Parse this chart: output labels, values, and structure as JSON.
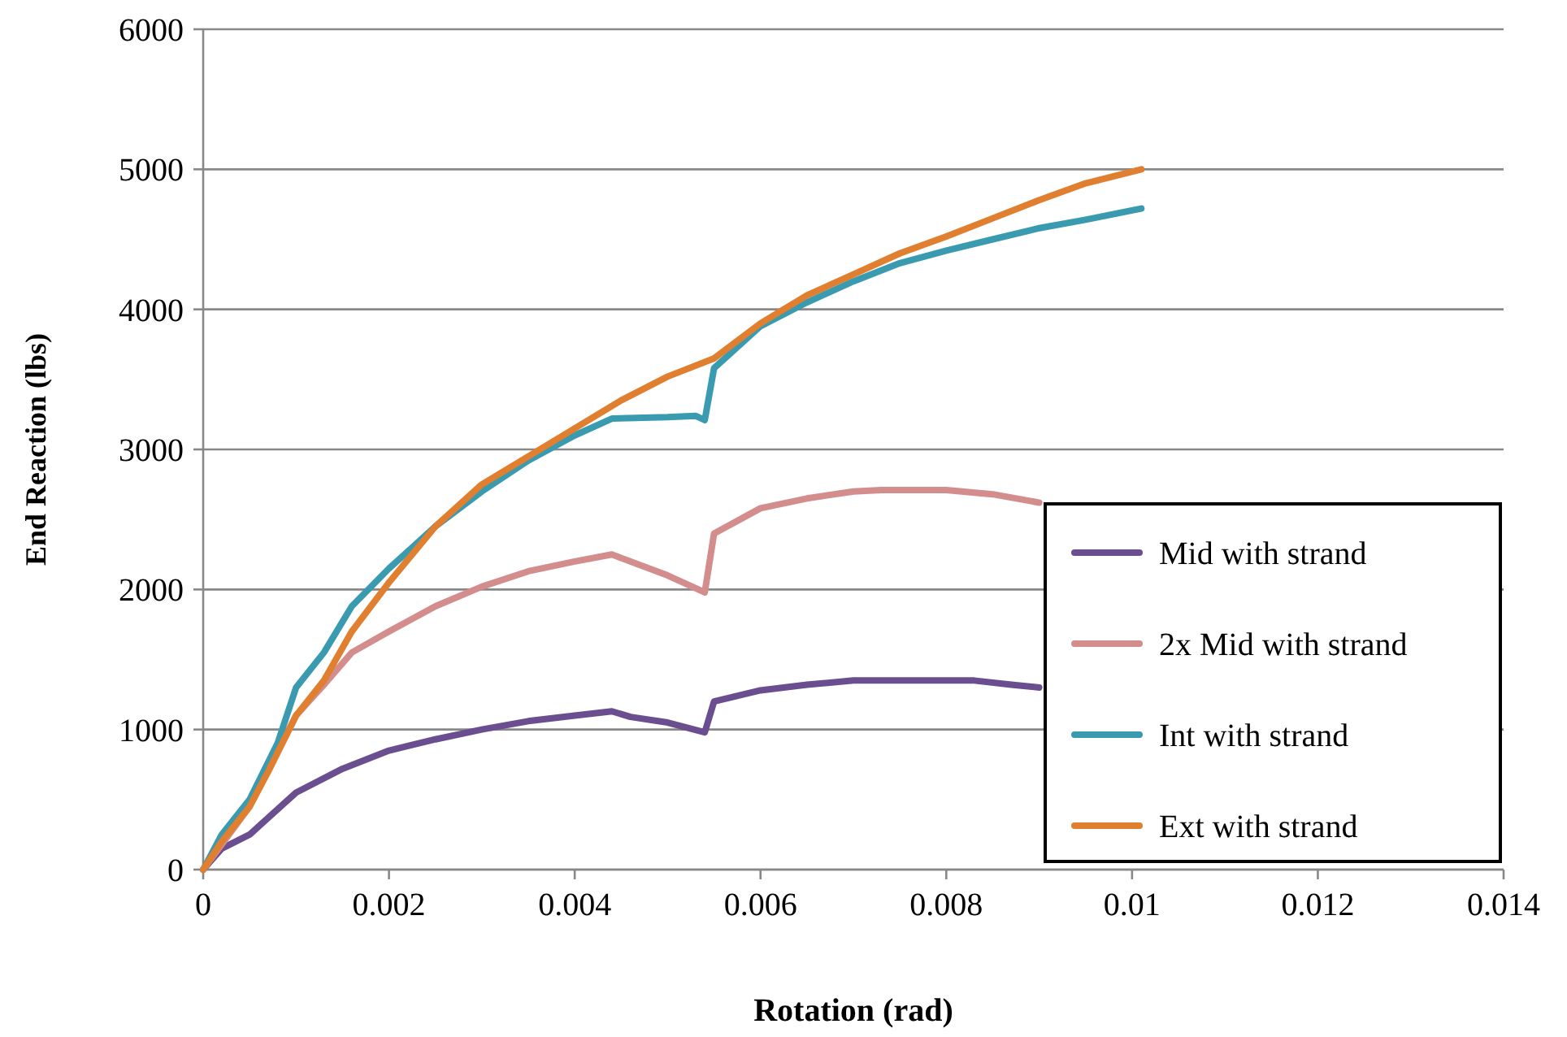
{
  "chart_data": {
    "type": "line",
    "xlabel": "Rotation (rad)",
    "ylabel": "End Reaction (lbs)",
    "xlim": [
      0,
      0.014
    ],
    "xticks": [
      0,
      0.002,
      0.004,
      0.006,
      0.008,
      0.01,
      0.012,
      0.014
    ],
    "ylim": [
      0,
      6000
    ],
    "yticks": [
      0,
      1000,
      2000,
      3000,
      4000,
      5000,
      6000
    ],
    "grid": "y",
    "legend": "bottom right",
    "marker": "none",
    "line_style": "solid",
    "series": [
      {
        "name": "Mid with strand",
        "color": "#6a4e8f",
        "x": [
          0,
          0.0002,
          0.0005,
          0.001,
          0.0015,
          0.002,
          0.0025,
          0.003,
          0.0035,
          0.004,
          0.0044,
          0.0046,
          0.005,
          0.0054,
          0.0055,
          0.006,
          0.0065,
          0.007,
          0.0083,
          0.0087,
          0.009
        ],
        "values": [
          0,
          150,
          250,
          550,
          720,
          850,
          930,
          1000,
          1060,
          1100,
          1130,
          1090,
          1050,
          980,
          1200,
          1280,
          1320,
          1350,
          1350,
          1320,
          1300
        ]
      },
      {
        "name": "2x Mid with strand",
        "color": "#d38d8d",
        "x": [
          0,
          0.0005,
          0.001,
          0.0013,
          0.0016,
          0.002,
          0.0025,
          0.003,
          0.0035,
          0.004,
          0.0044,
          0.005,
          0.0054,
          0.0055,
          0.006,
          0.0065,
          0.007,
          0.0073,
          0.008,
          0.0085,
          0.009
        ],
        "values": [
          0,
          450,
          1100,
          1320,
          1550,
          1700,
          1880,
          2020,
          2130,
          2200,
          2250,
          2100,
          1980,
          2400,
          2580,
          2650,
          2700,
          2710,
          2710,
          2680,
          2620
        ]
      },
      {
        "name": "Int with strand",
        "color": "#3a9bb0",
        "x": [
          0,
          0.0002,
          0.0005,
          0.0008,
          0.001,
          0.0013,
          0.0016,
          0.002,
          0.0025,
          0.003,
          0.0035,
          0.004,
          0.0044,
          0.005,
          0.0053,
          0.0054,
          0.0055,
          0.006,
          0.0065,
          0.007,
          0.0075,
          0.008,
          0.0085,
          0.009,
          0.0095,
          0.0101
        ],
        "values": [
          0,
          250,
          500,
          900,
          1300,
          1550,
          1880,
          2150,
          2450,
          2700,
          2920,
          3100,
          3220,
          3230,
          3240,
          3210,
          3580,
          3880,
          4050,
          4200,
          4330,
          4420,
          4500,
          4580,
          4640,
          4720
        ]
      },
      {
        "name": "Ext with strand",
        "color": "#e07f2f",
        "x": [
          0,
          0.0002,
          0.0005,
          0.0007,
          0.001,
          0.0013,
          0.0016,
          0.002,
          0.0025,
          0.003,
          0.0035,
          0.004,
          0.0045,
          0.005,
          0.0055,
          0.006,
          0.0065,
          0.007,
          0.0075,
          0.008,
          0.0085,
          0.009,
          0.0095,
          0.0101
        ],
        "values": [
          0,
          200,
          450,
          700,
          1100,
          1350,
          1700,
          2050,
          2450,
          2750,
          2950,
          3150,
          3350,
          3520,
          3650,
          3900,
          4100,
          4250,
          4400,
          4520,
          4650,
          4780,
          4900,
          5000
        ]
      }
    ]
  }
}
